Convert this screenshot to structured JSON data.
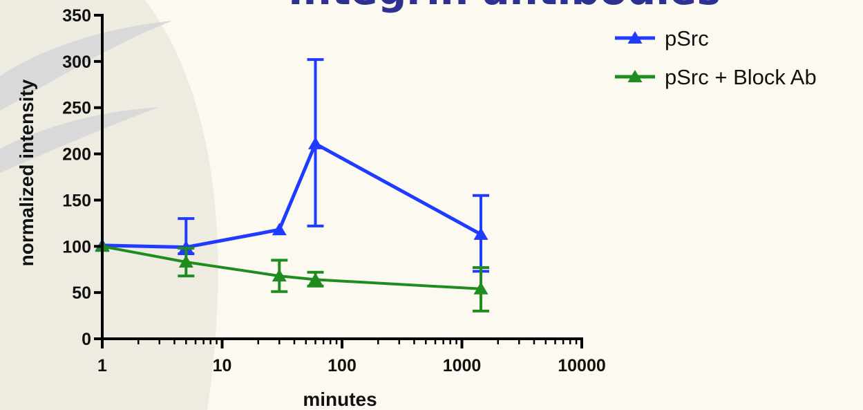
{
  "page": {
    "title_visible": "Integrin antibodies",
    "title_color": "#2e3192",
    "background_color": "#fcfaf0",
    "swoosh_color": "#d9d9d9"
  },
  "chart_data": {
    "type": "line",
    "xscale": "log",
    "xlabel": "minutes",
    "ylabel": "normalized intensity",
    "xlim": [
      1,
      10000
    ],
    "ylim": [
      0,
      350
    ],
    "xticks": [
      {
        "value": 1,
        "label": "1"
      },
      {
        "value": 10,
        "label": "10"
      },
      {
        "value": 100,
        "label": "100"
      },
      {
        "value": 1000,
        "label": "1000"
      },
      {
        "value": 10000,
        "label": "10000"
      }
    ],
    "yticks": [
      {
        "value": 0,
        "label": "0"
      },
      {
        "value": 50,
        "label": "50"
      },
      {
        "value": 100,
        "label": "100"
      },
      {
        "value": 150,
        "label": "150"
      },
      {
        "value": 200,
        "label": "200"
      },
      {
        "value": 250,
        "label": "250"
      },
      {
        "value": 300,
        "label": "300"
      },
      {
        "value": 350,
        "label": "350"
      }
    ],
    "grid": false,
    "legend_position": "top-right",
    "series": [
      {
        "name": "pSrc",
        "color": "#1f3bff",
        "marker": "triangle",
        "points": [
          {
            "x": 1,
            "y": 101
          },
          {
            "x": 5,
            "y": 99,
            "err_low": 92,
            "err_high": 130
          },
          {
            "x": 30,
            "y": 118
          },
          {
            "x": 60,
            "y": 211,
            "err_low": 122,
            "err_high": 302
          },
          {
            "x": 1440,
            "y": 113,
            "err_low": 73,
            "err_high": 155
          }
        ]
      },
      {
        "name": "pSrc + Block Ab",
        "color": "#1e8c1e",
        "marker": "triangle",
        "points": [
          {
            "x": 1,
            "y": 100
          },
          {
            "x": 5,
            "y": 83,
            "err_low": 68,
            "err_high": 98
          },
          {
            "x": 30,
            "y": 68,
            "err_low": 51,
            "err_high": 85
          },
          {
            "x": 60,
            "y": 64,
            "err_low": 57,
            "err_high": 72
          },
          {
            "x": 1440,
            "y": 54,
            "err_low": 30,
            "err_high": 77
          }
        ]
      }
    ]
  }
}
